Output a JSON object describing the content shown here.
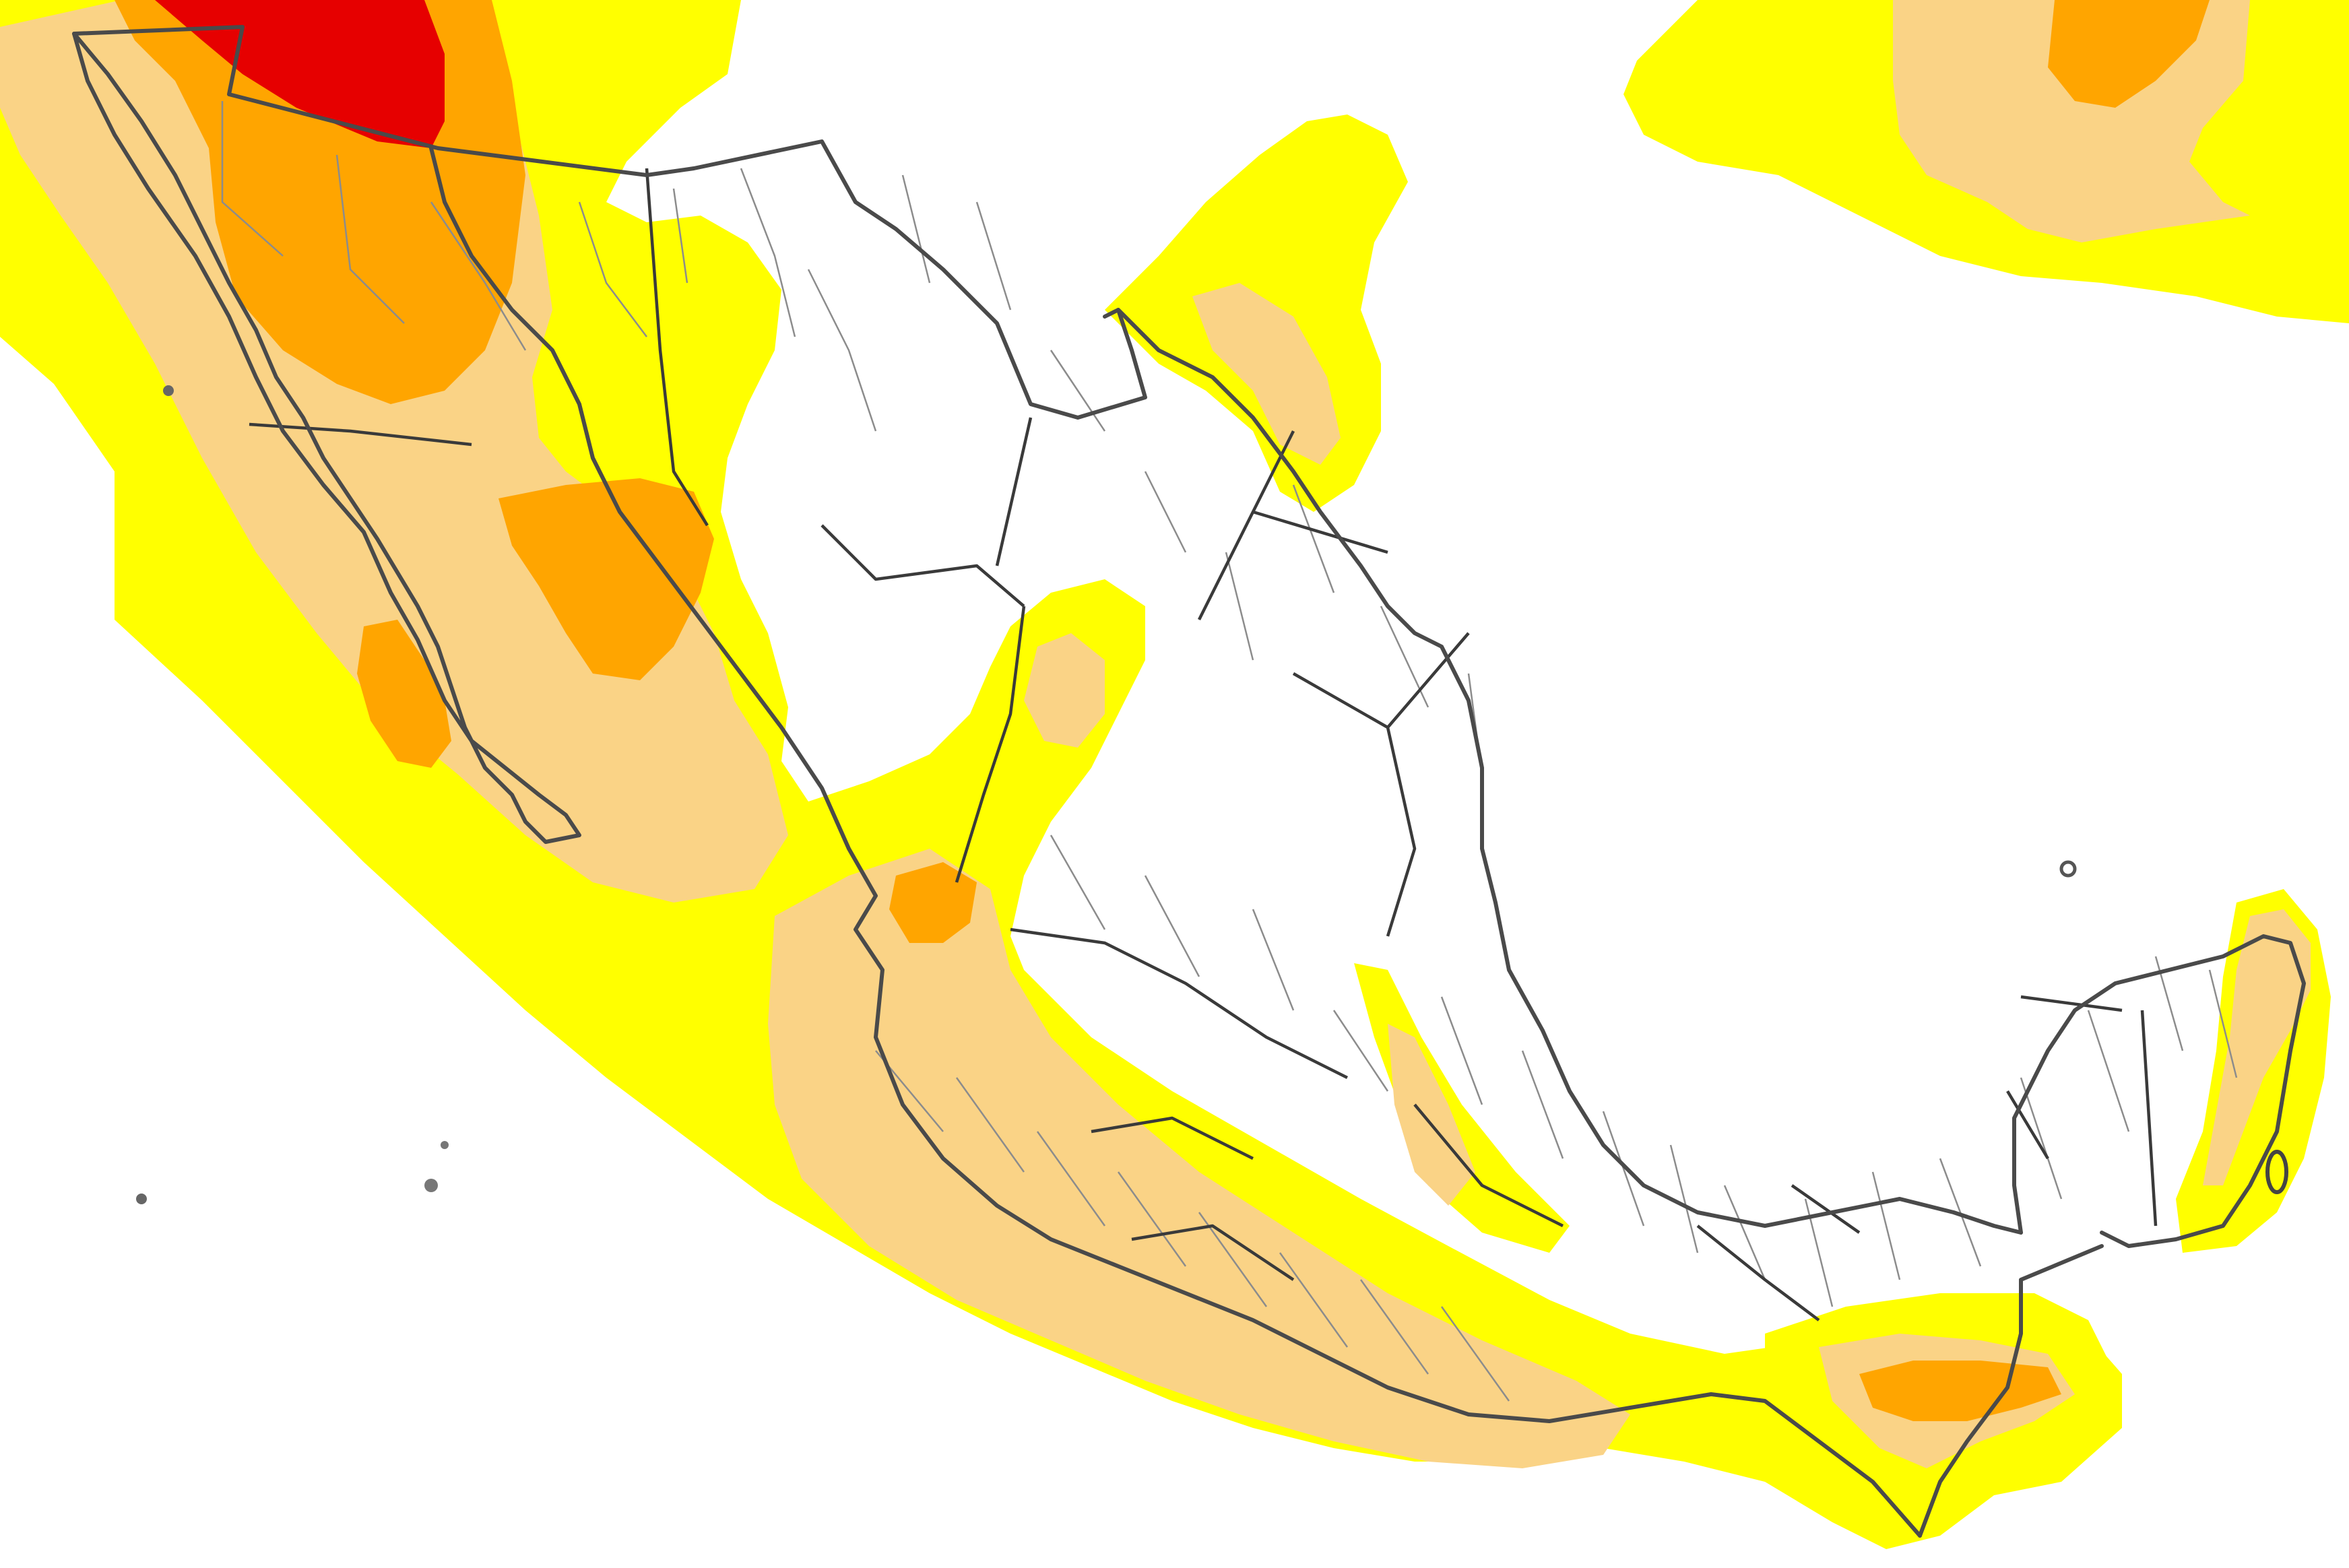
{
  "map": {
    "background": "#ffffff",
    "legend_colors": {
      "level_1": "#ffff00",
      "level_2": "#fad386",
      "level_3": "#ffa500",
      "level_4": "#e60000"
    },
    "boundary_color": "#4a4a4a",
    "municipal_line_color": "#8c8c8c"
  }
}
